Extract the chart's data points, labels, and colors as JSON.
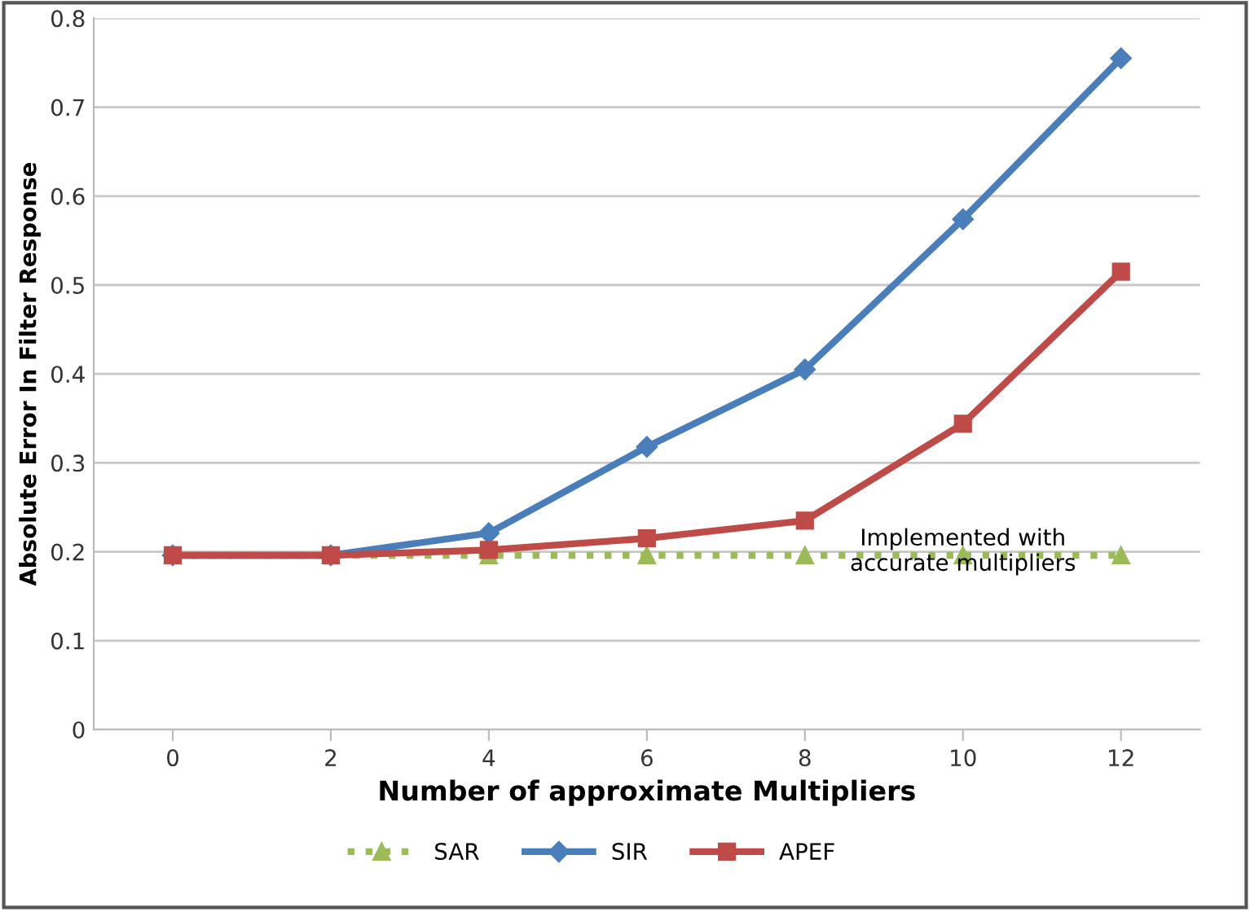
{
  "chart_data": {
    "type": "line",
    "xlabel": "Number of approximate Multipliers",
    "ylabel": "Absolute Error In Filter Response",
    "categories": [
      "0",
      "2",
      "4",
      "6",
      "8",
      "10",
      "12"
    ],
    "series": [
      {
        "name": "SAR",
        "color": "#9bbb59",
        "marker": "triangle",
        "line_style": "dotted",
        "values": [
          0.196,
          0.196,
          0.196,
          0.196,
          0.196,
          0.196,
          0.196
        ]
      },
      {
        "name": "SIR",
        "color": "#4a7ebb",
        "marker": "diamond",
        "line_style": "solid",
        "values": [
          0.196,
          0.196,
          0.221,
          0.318,
          0.405,
          0.574,
          0.755
        ]
      },
      {
        "name": "APEF",
        "color": "#be4b48",
        "marker": "square",
        "line_style": "solid",
        "values": [
          0.196,
          0.196,
          0.202,
          0.215,
          0.235,
          0.344,
          0.515
        ]
      }
    ],
    "ylim": [
      0,
      0.8
    ],
    "yticks": [
      0,
      0.1,
      0.2,
      0.3,
      0.4,
      0.5,
      0.6,
      0.7,
      0.8
    ],
    "grid": "y",
    "legend": "bottom",
    "annotations": [
      {
        "text": "Implemented with\naccurate multipliers",
        "x": "10",
        "y": 0.2
      }
    ]
  }
}
